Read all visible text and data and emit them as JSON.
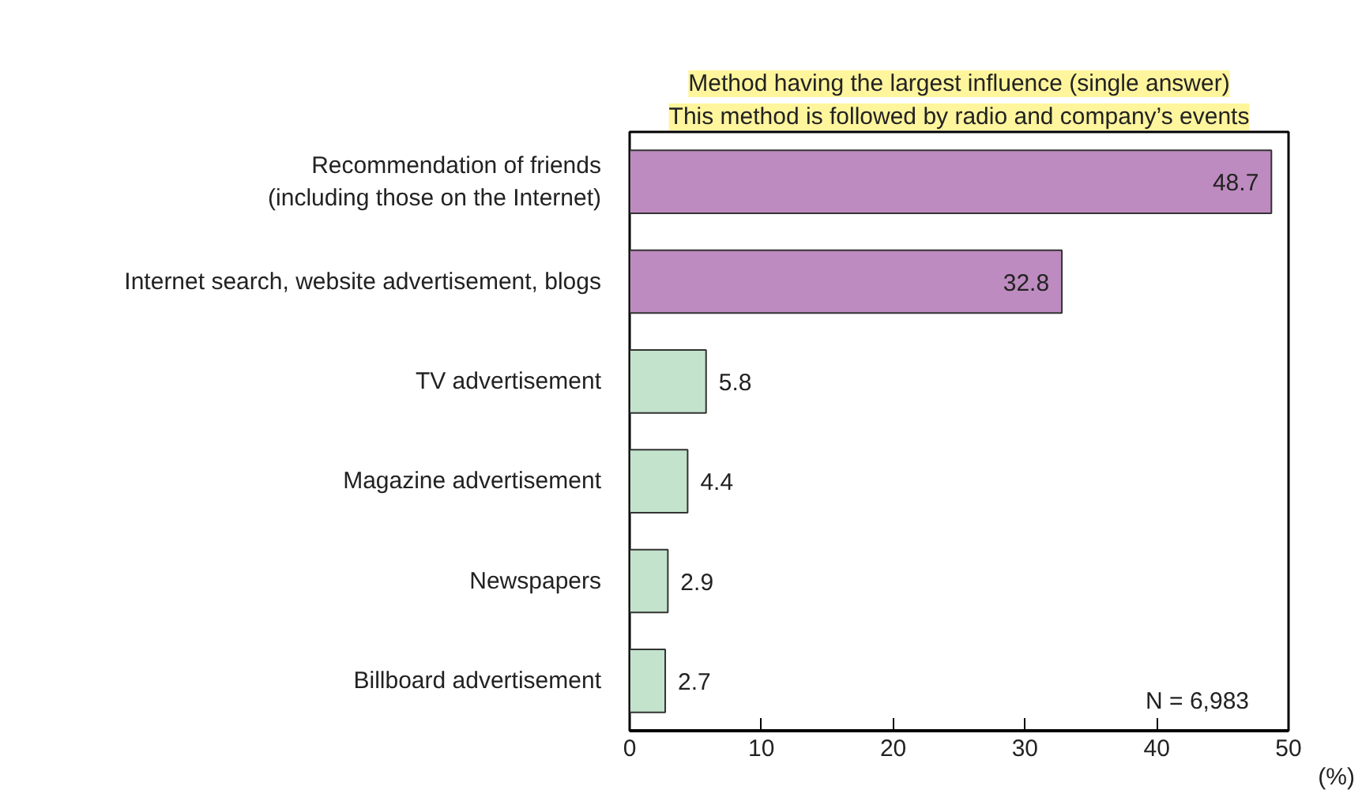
{
  "chart_data": {
    "type": "bar",
    "orientation": "horizontal",
    "title": "Method having the largest influence (single answer)",
    "subtitle": "This method is followed by radio and company’s events",
    "categories": [
      "Recommendation of friends\n(including those on the Internet)",
      "Internet search, website advertisement, blogs",
      "TV advertisement",
      "Magazine advertisement",
      "Newspapers",
      "Billboard advertisement"
    ],
    "values": [
      48.7,
      32.8,
      5.8,
      4.4,
      2.9,
      2.7
    ],
    "colors": [
      "#bd8bbf",
      "#bd8bbf",
      "#c3e3cc",
      "#c3e3cc",
      "#c3e3cc",
      "#c3e3cc"
    ],
    "xlim": [
      0,
      50
    ],
    "xticks": [
      0,
      10,
      20,
      30,
      40,
      50
    ],
    "xlabel": "(%)",
    "data_labels": true,
    "grid": false,
    "annotations": [
      "N = 6,983"
    ]
  }
}
